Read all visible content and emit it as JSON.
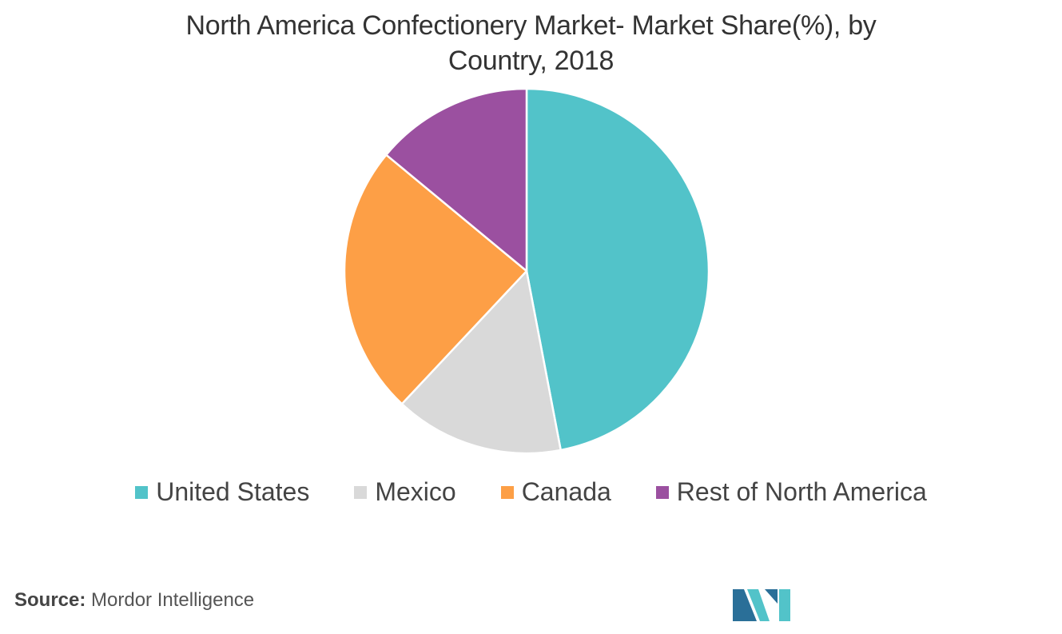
{
  "title": {
    "line1": "North America Confectionery Market- Market Share(%), by",
    "line2": "Country, 2018"
  },
  "chart_data": {
    "type": "pie",
    "title": "North America Confectionery Market- Market Share(%), by Country, 2018",
    "slices": [
      {
        "label": "United States",
        "value": 47,
        "color": "#52c3c9"
      },
      {
        "label": "Mexico",
        "value": 15,
        "color": "#d9d9d9"
      },
      {
        "label": "Canada",
        "value": 24,
        "color": "#fd9f46"
      },
      {
        "label": "Rest of North America",
        "value": 14,
        "color": "#9b50a0"
      }
    ],
    "start_angle_deg": 0,
    "direction": "clockwise",
    "legend_position": "bottom"
  },
  "source": {
    "label": "Source:",
    "text": "Mordor Intelligence"
  },
  "logo": {
    "colors": [
      "#2a6f98",
      "#52c3c9"
    ]
  }
}
